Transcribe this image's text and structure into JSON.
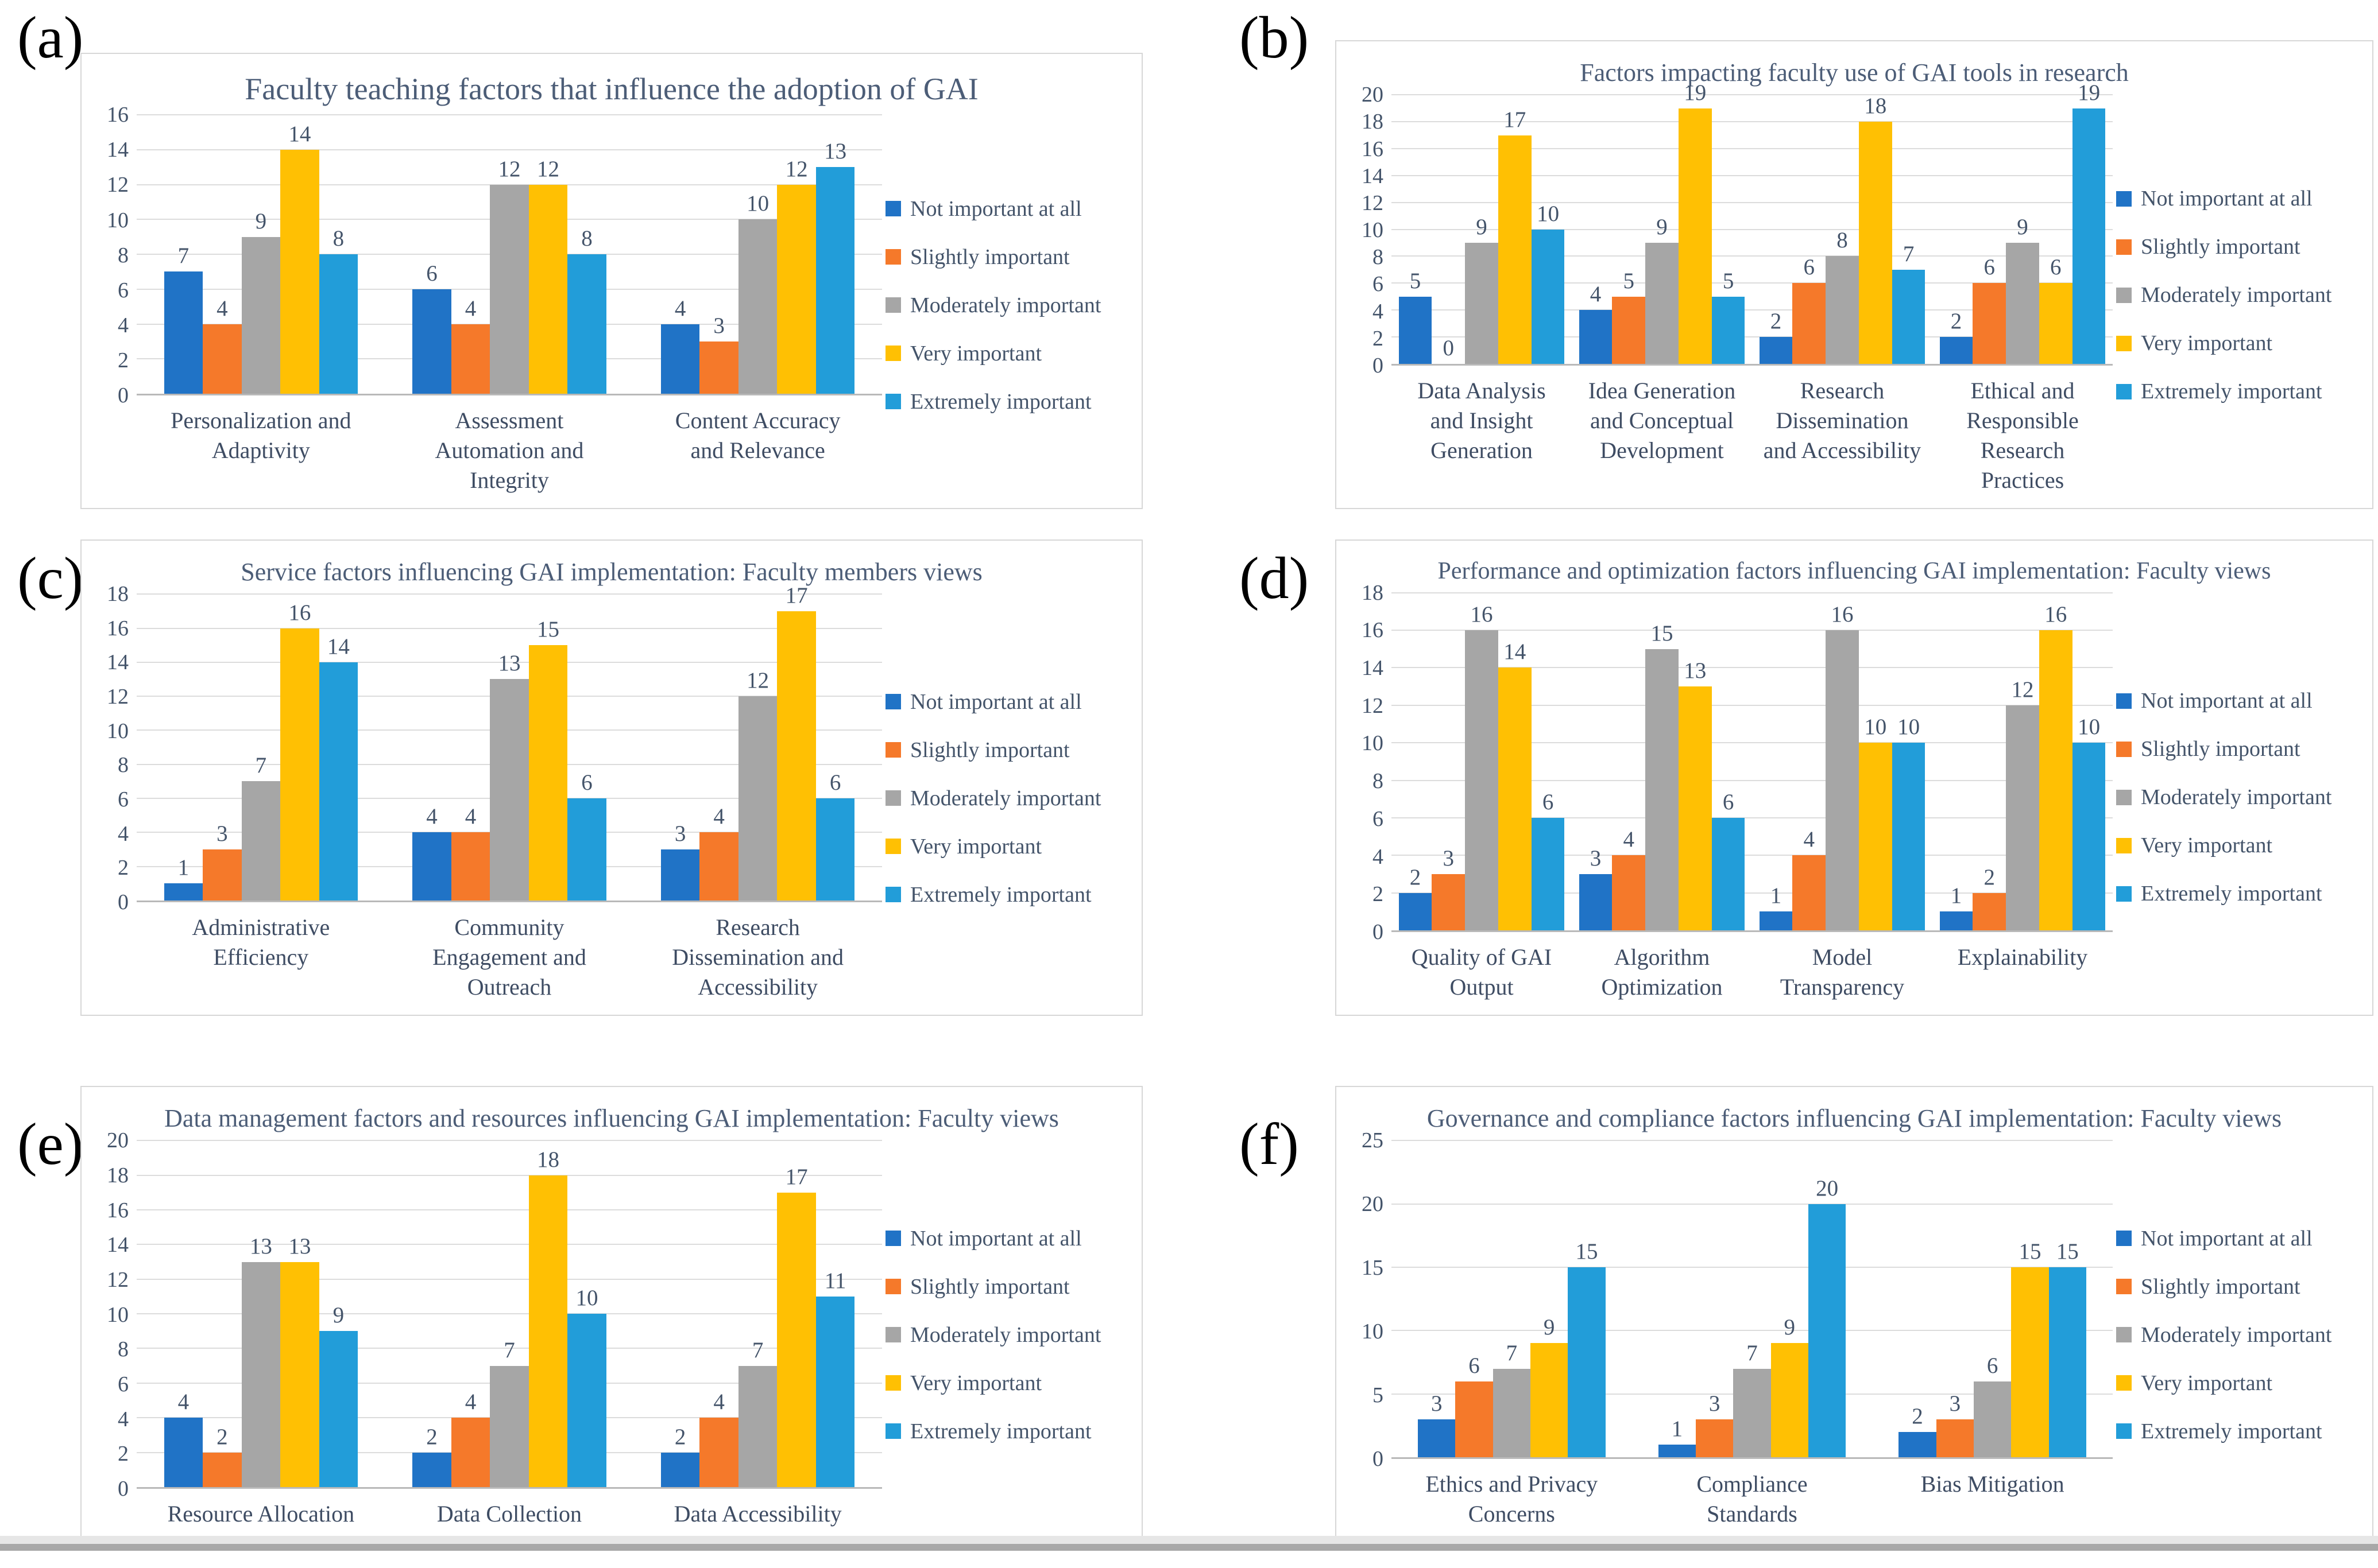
{
  "page": {
    "panel_letters": [
      "(a)",
      "(b)",
      "(c)",
      "(d)",
      "(e)",
      "(f)"
    ]
  },
  "legend": {
    "position": "right",
    "items": [
      {
        "label": "Not important at all",
        "color": "#2073C6"
      },
      {
        "label": "Slightly important",
        "color": "#F5792A"
      },
      {
        "label": "Moderately important",
        "color": "#A6A6A6"
      },
      {
        "label": "Very important",
        "color": "#FFC003"
      },
      {
        "label": "Extremely important",
        "color": "#229DD9"
      }
    ]
  },
  "chart_data": [
    {
      "id": "a",
      "panel_letter": "(a)",
      "type": "bar",
      "title": "Faculty teaching factors that influence the adoption of GAI",
      "categories": [
        "Personalization and Adaptivity",
        "Assessment Automation and Integrity",
        "Content Accuracy and Relevance"
      ],
      "series": [
        {
          "name": "Not important at all",
          "color": "#2073C6",
          "values": [
            7,
            6,
            4
          ]
        },
        {
          "name": "Slightly important",
          "color": "#F5792A",
          "values": [
            4,
            4,
            3
          ]
        },
        {
          "name": "Moderately important",
          "color": "#A6A6A6",
          "values": [
            9,
            12,
            10
          ]
        },
        {
          "name": "Very important",
          "color": "#FFC003",
          "values": [
            14,
            12,
            12
          ]
        },
        {
          "name": "Extremely important",
          "color": "#229DD9",
          "values": [
            8,
            8,
            13
          ]
        }
      ],
      "ylim": [
        0,
        16
      ],
      "y_step": 2,
      "grid": true,
      "legend_position": "right"
    },
    {
      "id": "b",
      "panel_letter": "(b)",
      "type": "bar",
      "title": "Factors impacting faculty use of GAI tools in research",
      "categories": [
        "Data Analysis and Insight Generation",
        "Idea Generation and Conceptual Development",
        "Research Dissemination and Accessibility",
        "Ethical and Responsible Research Practices"
      ],
      "series": [
        {
          "name": "Not important at all",
          "color": "#2073C6",
          "values": [
            5,
            4,
            2,
            2
          ]
        },
        {
          "name": "Slightly important",
          "color": "#F5792A",
          "values": [
            0,
            5,
            6,
            6
          ]
        },
        {
          "name": "Moderately important",
          "color": "#A6A6A6",
          "values": [
            9,
            9,
            8,
            9
          ]
        },
        {
          "name": "Very important",
          "color": "#FFC003",
          "values": [
            17,
            19,
            18,
            6
          ]
        },
        {
          "name": "Extremely important",
          "color": "#229DD9",
          "values": [
            10,
            5,
            7,
            19
          ]
        }
      ],
      "ylim": [
        0,
        20
      ],
      "y_step": 2,
      "grid": true,
      "legend_position": "right"
    },
    {
      "id": "c",
      "panel_letter": "(c)",
      "type": "bar",
      "title": "Service factors influencing GAI implementation: Faculty members views",
      "categories": [
        "Administrative Efficiency",
        "Community Engagement and Outreach",
        "Research Dissemination and Accessibility"
      ],
      "series": [
        {
          "name": "Not important at all",
          "color": "#2073C6",
          "values": [
            1,
            4,
            3
          ]
        },
        {
          "name": "Slightly important",
          "color": "#F5792A",
          "values": [
            3,
            4,
            4
          ]
        },
        {
          "name": "Moderately important",
          "color": "#A6A6A6",
          "values": [
            7,
            13,
            12
          ]
        },
        {
          "name": "Very important",
          "color": "#FFC003",
          "values": [
            16,
            15,
            17
          ]
        },
        {
          "name": "Extremely important",
          "color": "#229DD9",
          "values": [
            14,
            6,
            6
          ]
        }
      ],
      "ylim": [
        0,
        18
      ],
      "y_step": 2,
      "grid": true,
      "legend_position": "right"
    },
    {
      "id": "d",
      "panel_letter": "(d)",
      "type": "bar",
      "title": "Performance and optimization factors influencing GAI implementation: Faculty views",
      "categories": [
        "Quality of GAI Output",
        "Algorithm Optimization",
        "Model Transparency",
        "Explainability"
      ],
      "series": [
        {
          "name": "Not important at all",
          "color": "#2073C6",
          "values": [
            2,
            3,
            1,
            1
          ]
        },
        {
          "name": "Slightly important",
          "color": "#F5792A",
          "values": [
            3,
            4,
            4,
            2
          ]
        },
        {
          "name": "Moderately important",
          "color": "#A6A6A6",
          "values": [
            16,
            15,
            16,
            12
          ]
        },
        {
          "name": "Very important",
          "color": "#FFC003",
          "values": [
            14,
            13,
            10,
            16
          ]
        },
        {
          "name": "Extremely important",
          "color": "#229DD9",
          "values": [
            6,
            6,
            10,
            10
          ]
        }
      ],
      "ylim": [
        0,
        18
      ],
      "y_step": 2,
      "grid": true,
      "legend_position": "right"
    },
    {
      "id": "e",
      "panel_letter": "(e)",
      "type": "bar",
      "title": "Data management factors and resources influencing GAI implementation: Faculty views",
      "categories": [
        "Resource Allocation",
        "Data Collection",
        "Data Accessibility"
      ],
      "series": [
        {
          "name": "Not important at all",
          "color": "#2073C6",
          "values": [
            4,
            2,
            2
          ]
        },
        {
          "name": "Slightly important",
          "color": "#F5792A",
          "values": [
            2,
            4,
            4
          ]
        },
        {
          "name": "Moderately important",
          "color": "#A6A6A6",
          "values": [
            13,
            7,
            7
          ]
        },
        {
          "name": "Very important",
          "color": "#FFC003",
          "values": [
            13,
            18,
            17
          ]
        },
        {
          "name": "Extremely important",
          "color": "#229DD9",
          "values": [
            9,
            10,
            11
          ]
        }
      ],
      "ylim": [
        0,
        20
      ],
      "y_step": 2,
      "grid": true,
      "legend_position": "right"
    },
    {
      "id": "f",
      "panel_letter": "(f)",
      "type": "bar",
      "title": "Governance and compliance factors influencing GAI implementation: Faculty views",
      "categories": [
        "Ethics and Privacy Concerns",
        "Compliance Standards",
        "Bias Mitigation"
      ],
      "series": [
        {
          "name": "Not important at all",
          "color": "#2073C6",
          "values": [
            3,
            1,
            2
          ]
        },
        {
          "name": "Slightly important",
          "color": "#F5792A",
          "values": [
            6,
            3,
            3
          ]
        },
        {
          "name": "Moderately important",
          "color": "#A6A6A6",
          "values": [
            7,
            7,
            6
          ]
        },
        {
          "name": "Very important",
          "color": "#FFC003",
          "values": [
            9,
            9,
            15
          ]
        },
        {
          "name": "Extremely important",
          "color": "#229DD9",
          "values": [
            15,
            20,
            15
          ]
        }
      ],
      "ylim": [
        0,
        25
      ],
      "y_step": 5,
      "grid": true,
      "legend_position": "right"
    }
  ]
}
